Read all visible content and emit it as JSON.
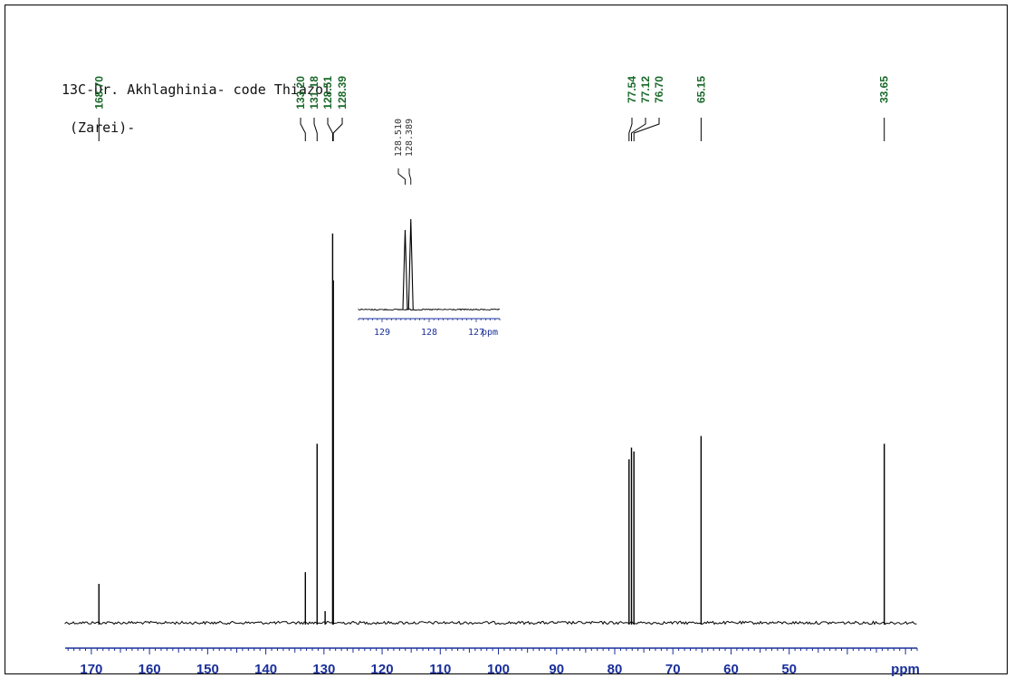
{
  "title": {
    "line1": "13C-Dr. Akhlaghinia- code Thiazol",
    "line2": " (Zarei)-"
  },
  "colors": {
    "peak_label": "#1a6a2a",
    "axis": "#1a2f9a",
    "spectrum": "#000000"
  },
  "chart_data": [
    {
      "type": "line",
      "name": "main-spectrum",
      "x_unit": "ppm",
      "x_direction": "reversed",
      "xlim": [
        174.5,
        28
      ],
      "x_ticks": [
        170,
        160,
        150,
        140,
        130,
        120,
        110,
        100,
        90,
        80,
        70,
        60,
        50
      ],
      "x_tick_labels": [
        "170",
        "160",
        "150",
        "140",
        "130",
        "120",
        "110",
        "100",
        "90",
        "80",
        "70",
        "60",
        "50"
      ],
      "x_unit_label": "ppm",
      "peaks": [
        {
          "ppm": 168.7,
          "label": "168.70",
          "intensity": 0.1
        },
        {
          "ppm": 133.2,
          "label": "133.20",
          "intensity": 0.13
        },
        {
          "ppm": 131.18,
          "label": "131.18",
          "intensity": 0.46
        },
        {
          "ppm": 129.8,
          "intensity": 0.03
        },
        {
          "ppm": 128.51,
          "label": "128.51",
          "intensity": 1.0
        },
        {
          "ppm": 128.39,
          "label": "128.39",
          "intensity": 0.88
        },
        {
          "ppm": 77.54,
          "label": "77.54",
          "intensity": 0.42
        },
        {
          "ppm": 77.12,
          "label": "77.12",
          "intensity": 0.45
        },
        {
          "ppm": 76.7,
          "label": "76.70",
          "intensity": 0.44
        },
        {
          "ppm": 65.15,
          "label": "65.15",
          "intensity": 0.48
        },
        {
          "ppm": 33.65,
          "label": "33.65",
          "intensity": 0.46
        }
      ]
    },
    {
      "type": "line",
      "name": "inset-expansion",
      "x_unit": "ppm",
      "x_direction": "reversed",
      "xlim": [
        129.5,
        126.5
      ],
      "x_ticks": [
        129,
        128,
        127
      ],
      "x_tick_labels": [
        "129",
        "128",
        "127"
      ],
      "x_unit_label": "ppm",
      "peaks": [
        {
          "ppm": 128.51,
          "label": "128.510",
          "intensity": 0.88
        },
        {
          "ppm": 128.389,
          "label": "128.389",
          "intensity": 1.0
        }
      ]
    }
  ]
}
